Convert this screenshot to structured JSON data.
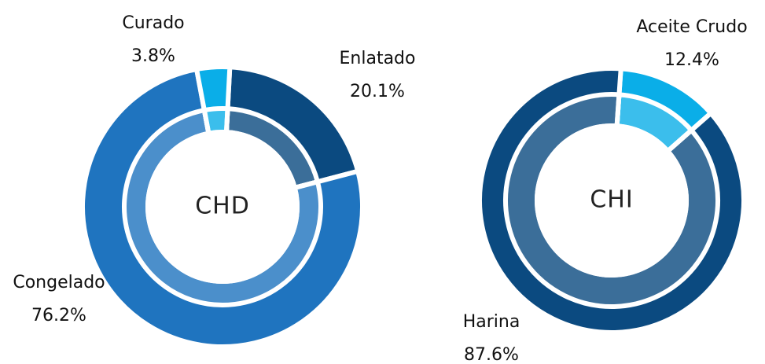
{
  "chart_data": [
    {
      "type": "pie",
      "title": "CHD",
      "categories": [
        "Enlatado",
        "Congelado",
        "Curado"
      ],
      "values": [
        20.1,
        76.2,
        3.8
      ],
      "value_labels": [
        "20.1%",
        "76.2%",
        "3.8%"
      ],
      "colors": [
        "#0b4a80",
        "#1f74bf",
        "#0aaee8"
      ]
    },
    {
      "type": "pie",
      "title": "CHI",
      "categories": [
        "Aceite Crudo",
        "Harina"
      ],
      "values": [
        12.4,
        87.6
      ],
      "value_labels": [
        "12.4%",
        "87.6%"
      ],
      "colors": [
        "#0aaee8",
        "#0b4a80"
      ]
    }
  ]
}
